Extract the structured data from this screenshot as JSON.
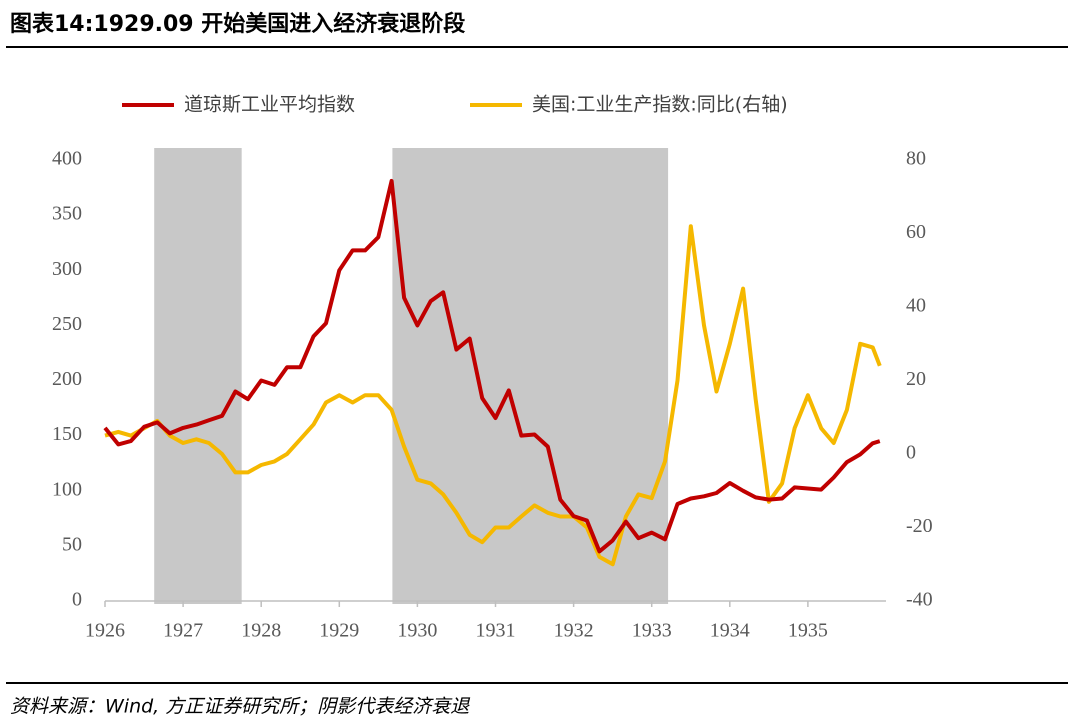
{
  "chart_data": {
    "type": "line",
    "title": "图表14:1929.09 开始美国进入经济衰退阶段",
    "source": "资料来源：Wind, 方正证券研究所；阴影代表经济衰退",
    "x": [
      1926,
      1926.17,
      1926.33,
      1926.5,
      1926.67,
      1926.83,
      1927,
      1927.17,
      1927.33,
      1927.5,
      1927.67,
      1927.83,
      1928,
      1928.17,
      1928.33,
      1928.5,
      1928.67,
      1928.83,
      1929,
      1929.17,
      1929.33,
      1929.5,
      1929.67,
      1929.83,
      1930,
      1930.17,
      1930.33,
      1930.5,
      1930.67,
      1930.83,
      1931,
      1931.17,
      1931.33,
      1931.5,
      1931.67,
      1931.83,
      1932,
      1932.17,
      1932.33,
      1932.5,
      1932.67,
      1932.83,
      1933,
      1933.17,
      1933.33,
      1933.5,
      1933.67,
      1933.83,
      1934,
      1934.17,
      1934.33,
      1934.5,
      1934.67,
      1934.83,
      1935,
      1935.17,
      1935.33,
      1935.5,
      1935.67,
      1935.83,
      1935.92
    ],
    "series": [
      {
        "name": "道琼斯工业平均指数",
        "color": "#c00000",
        "values": [
          157,
          142,
          145,
          158,
          162,
          152,
          157,
          160,
          164,
          168,
          190,
          183,
          200,
          196,
          212,
          212,
          240,
          252,
          300,
          318,
          318,
          330,
          381,
          275,
          250,
          272,
          280,
          228,
          238,
          184,
          166,
          191,
          150,
          151,
          140,
          92,
          77,
          73,
          45,
          55,
          72,
          57,
          62,
          56,
          88,
          93,
          95,
          98,
          107,
          100,
          94,
          92,
          93,
          103,
          102,
          101,
          112,
          126,
          133,
          143,
          145
        ]
      },
      {
        "name": "美国:工业生产指数:同比(右轴)",
        "color": "#f5b800",
        "axis": "y2",
        "values": [
          5,
          6,
          5,
          7,
          9,
          5,
          3,
          4,
          3,
          0,
          -5,
          -5,
          -3,
          -2,
          0,
          4,
          8,
          14,
          16,
          14,
          16,
          16,
          12,
          2,
          -7,
          -8,
          -11,
          -16,
          -22,
          -24,
          -20,
          -20,
          -17,
          -14,
          -16,
          -17,
          -17,
          -20,
          -28,
          -30,
          -17,
          -11,
          -12,
          -2,
          20,
          62,
          35,
          17,
          30,
          45,
          15,
          -13,
          -8,
          7,
          16,
          7,
          3,
          12,
          30,
          29,
          24
        ]
      }
    ],
    "shaded_periods": [
      [
        1926.63,
        1927.75
      ],
      [
        1929.68,
        1933.21
      ]
    ],
    "xlim": [
      1926,
      1936
    ],
    "xticks": [
      1926,
      1927,
      1928,
      1929,
      1930,
      1931,
      1932,
      1933,
      1934,
      1935
    ],
    "ylim": [
      0,
      400
    ],
    "yticks": [
      0,
      50,
      100,
      150,
      200,
      250,
      300,
      350,
      400
    ],
    "y2lim": [
      -40,
      80
    ],
    "y2ticks": [
      -40,
      -20,
      0,
      20,
      40,
      60,
      80
    ],
    "grid": false,
    "legend": "top"
  }
}
